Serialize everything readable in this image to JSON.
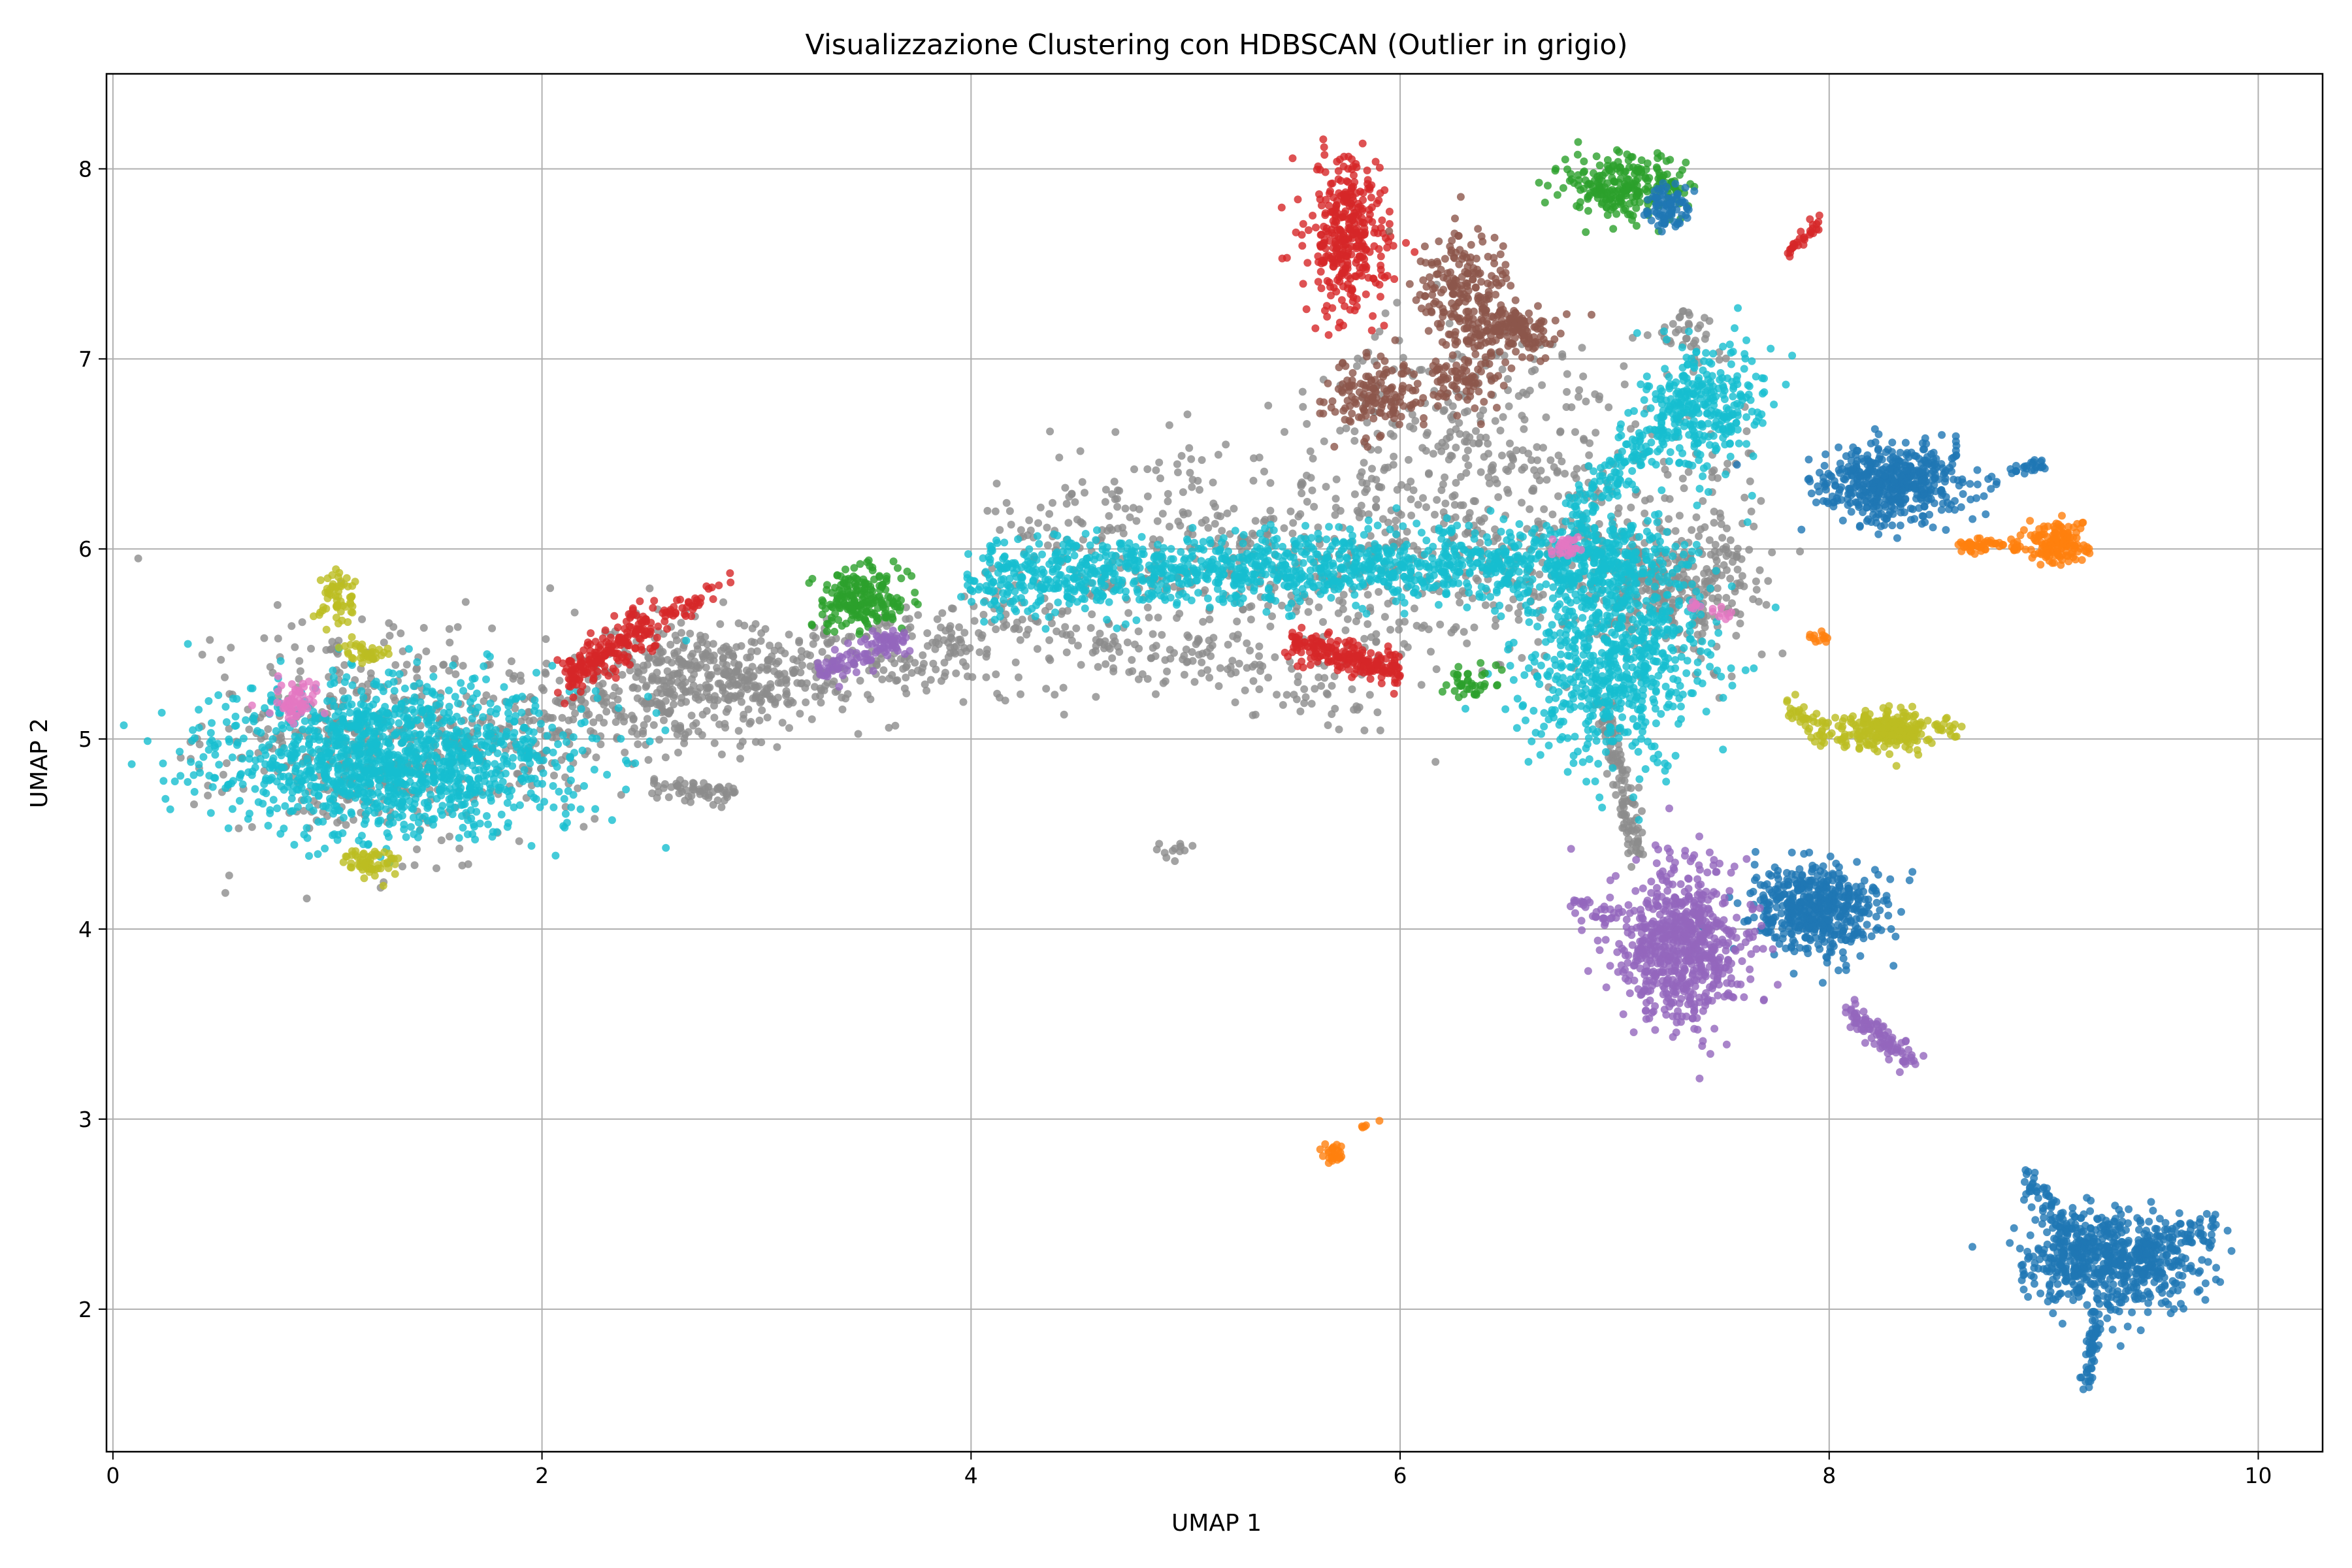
{
  "chart_data": {
    "type": "scatter",
    "title": "Visualizzazione Clustering con HDBSCAN (Outlier in grigio)",
    "xlabel": "UMAP 1",
    "ylabel": "UMAP 2",
    "xlim": [
      -0.03,
      10.3
    ],
    "ylim": [
      1.25,
      8.5
    ],
    "xticks": [
      0,
      2,
      4,
      6,
      8,
      10
    ],
    "yticks": [
      2,
      3,
      4,
      5,
      6,
      7,
      8
    ],
    "grid": true,
    "legend": "none",
    "outlier_color": "#8c8c8c",
    "colors": {
      "blue": "#1f77b4",
      "orange": "#ff7f0e",
      "green": "#2ca02c",
      "red": "#d62728",
      "purple": "#9467bd",
      "brown": "#8c564b",
      "pink": "#e377c2",
      "gray": "#7f7f7f",
      "olive": "#bcbd22",
      "cyan": "#17becf"
    },
    "clusters": [
      {
        "color": "gray",
        "shape": "blob",
        "cx": 1.3,
        "cy": 5.0,
        "sx": 0.4,
        "sy": 0.3,
        "n": 500
      },
      {
        "color": "gray",
        "shape": "line",
        "x0": 1.9,
        "y0": 5.05,
        "x1": 4.2,
        "y1": 5.55,
        "spread": 0.13,
        "n": 500
      },
      {
        "color": "gray",
        "shape": "blob",
        "cx": 2.7,
        "cy": 5.35,
        "sx": 0.25,
        "sy": 0.15,
        "n": 250
      },
      {
        "color": "gray",
        "shape": "line",
        "x0": 2.5,
        "y0": 4.75,
        "x1": 2.9,
        "y1": 4.7,
        "spread": 0.03,
        "n": 60
      },
      {
        "color": "gray",
        "shape": "line",
        "x0": 4.2,
        "y0": 5.9,
        "x1": 7.6,
        "y1": 6.0,
        "spread": 0.3,
        "n": 900
      },
      {
        "color": "gray",
        "shape": "blob",
        "cx": 6.3,
        "cy": 6.6,
        "sx": 0.4,
        "sy": 0.3,
        "n": 250
      },
      {
        "color": "gray",
        "shape": "blob",
        "cx": 7.3,
        "cy": 5.8,
        "sx": 0.2,
        "sy": 0.15,
        "n": 200
      },
      {
        "color": "gray",
        "shape": "line",
        "x0": 6.95,
        "y0": 5.2,
        "x1": 7.1,
        "y1": 4.4,
        "spread": 0.06,
        "n": 120
      },
      {
        "color": "gray",
        "shape": "line",
        "x0": 4.4,
        "y0": 5.55,
        "x1": 5.9,
        "y1": 5.2,
        "spread": 0.08,
        "n": 120
      },
      {
        "color": "gray",
        "shape": "blob",
        "cx": 7.3,
        "cy": 7.1,
        "sx": 0.1,
        "sy": 0.08,
        "n": 40
      },
      {
        "color": "gray",
        "shape": "blob",
        "cx": 4.95,
        "cy": 4.42,
        "sx": 0.05,
        "sy": 0.03,
        "n": 12
      },
      {
        "color": "cyan",
        "shape": "blob",
        "cx": 1.3,
        "cy": 4.9,
        "sx": 0.42,
        "sy": 0.2,
        "n": 1300
      },
      {
        "color": "cyan",
        "shape": "line",
        "x0": 4.0,
        "y0": 5.85,
        "x1": 7.2,
        "y1": 5.95,
        "spread": 0.1,
        "n": 1300
      },
      {
        "color": "cyan",
        "shape": "blob",
        "cx": 7.0,
        "cy": 5.5,
        "sx": 0.22,
        "sy": 0.3,
        "n": 800
      },
      {
        "color": "cyan",
        "shape": "blob",
        "cx": 7.4,
        "cy": 6.75,
        "sx": 0.14,
        "sy": 0.16,
        "n": 300
      },
      {
        "color": "cyan",
        "shape": "line",
        "x0": 6.8,
        "y0": 6.2,
        "x1": 7.3,
        "y1": 6.7,
        "spread": 0.08,
        "n": 150
      },
      {
        "color": "red",
        "shape": "blob",
        "cx": 5.75,
        "cy": 7.65,
        "sx": 0.1,
        "sy": 0.2,
        "n": 350
      },
      {
        "color": "red",
        "shape": "line",
        "x0": 2.1,
        "y0": 5.3,
        "x1": 2.5,
        "y1": 5.6,
        "spread": 0.06,
        "n": 200
      },
      {
        "color": "red",
        "shape": "line",
        "x0": 2.5,
        "y0": 5.6,
        "x1": 2.9,
        "y1": 5.85,
        "spread": 0.03,
        "n": 40
      },
      {
        "color": "red",
        "shape": "line",
        "x0": 5.5,
        "y0": 5.5,
        "x1": 6.0,
        "y1": 5.35,
        "spread": 0.05,
        "n": 200
      },
      {
        "color": "red",
        "shape": "line",
        "x0": 7.8,
        "y0": 7.55,
        "x1": 7.95,
        "y1": 7.72,
        "spread": 0.02,
        "n": 30
      },
      {
        "color": "green",
        "shape": "blob",
        "cx": 7.05,
        "cy": 7.9,
        "sx": 0.15,
        "sy": 0.08,
        "n": 250
      },
      {
        "color": "green",
        "shape": "blob",
        "cx": 3.5,
        "cy": 5.75,
        "sx": 0.1,
        "sy": 0.08,
        "n": 200
      },
      {
        "color": "green",
        "shape": "blob",
        "cx": 6.3,
        "cy": 5.3,
        "sx": 0.08,
        "sy": 0.05,
        "n": 40
      },
      {
        "color": "blue",
        "shape": "blob",
        "cx": 8.3,
        "cy": 6.35,
        "sx": 0.18,
        "sy": 0.1,
        "n": 500
      },
      {
        "color": "blue",
        "shape": "blob",
        "cx": 7.95,
        "cy": 4.1,
        "sx": 0.15,
        "sy": 0.12,
        "n": 500
      },
      {
        "color": "blue",
        "shape": "blob",
        "cx": 9.3,
        "cy": 2.25,
        "sx": 0.2,
        "sy": 0.13,
        "n": 600
      },
      {
        "color": "blue",
        "shape": "line",
        "x0": 9.25,
        "y0": 2.0,
        "x1": 9.2,
        "y1": 1.6,
        "spread": 0.03,
        "n": 60
      },
      {
        "color": "blue",
        "shape": "line",
        "x0": 8.9,
        "y0": 2.7,
        "x1": 9.2,
        "y1": 2.3,
        "spread": 0.05,
        "n": 80
      },
      {
        "color": "blue",
        "shape": "line",
        "x0": 9.5,
        "y0": 2.3,
        "x1": 9.8,
        "y1": 2.45,
        "spread": 0.04,
        "n": 50
      },
      {
        "color": "blue",
        "shape": "blob",
        "cx": 7.25,
        "cy": 7.8,
        "sx": 0.05,
        "sy": 0.06,
        "n": 80
      },
      {
        "color": "blue",
        "shape": "line",
        "x0": 8.85,
        "y0": 6.4,
        "x1": 9.0,
        "y1": 6.45,
        "spread": 0.02,
        "n": 25
      },
      {
        "color": "orange",
        "shape": "blob",
        "cx": 9.05,
        "cy": 6.03,
        "sx": 0.07,
        "sy": 0.05,
        "n": 150
      },
      {
        "color": "orange",
        "shape": "line",
        "x0": 8.6,
        "y0": 6.02,
        "x1": 8.9,
        "y1": 6.02,
        "spread": 0.02,
        "n": 50
      },
      {
        "color": "orange",
        "shape": "blob",
        "cx": 5.7,
        "cy": 2.82,
        "sx": 0.03,
        "sy": 0.03,
        "n": 25
      },
      {
        "color": "orange",
        "shape": "line",
        "x0": 5.8,
        "y0": 2.95,
        "x1": 5.95,
        "y1": 3.0,
        "spread": 0.01,
        "n": 5
      },
      {
        "color": "orange",
        "shape": "blob",
        "cx": 7.95,
        "cy": 5.53,
        "sx": 0.03,
        "sy": 0.02,
        "n": 12
      },
      {
        "color": "purple",
        "shape": "blob",
        "cx": 7.3,
        "cy": 3.9,
        "sx": 0.15,
        "sy": 0.2,
        "n": 700
      },
      {
        "color": "purple",
        "shape": "line",
        "x0": 8.1,
        "y0": 3.55,
        "x1": 8.4,
        "y1": 3.3,
        "spread": 0.04,
        "n": 100
      },
      {
        "color": "purple",
        "shape": "line",
        "x0": 3.3,
        "y0": 5.35,
        "x1": 3.7,
        "y1": 5.55,
        "spread": 0.04,
        "n": 100
      },
      {
        "color": "purple",
        "shape": "line",
        "x0": 6.8,
        "y0": 4.15,
        "x1": 7.0,
        "y1": 4.05,
        "spread": 0.03,
        "n": 30
      },
      {
        "color": "brown",
        "shape": "blob",
        "cx": 6.3,
        "cy": 7.35,
        "sx": 0.1,
        "sy": 0.15,
        "n": 200
      },
      {
        "color": "brown",
        "shape": "blob",
        "cx": 6.5,
        "cy": 7.15,
        "sx": 0.12,
        "sy": 0.07,
        "n": 150
      },
      {
        "color": "brown",
        "shape": "blob",
        "cx": 5.9,
        "cy": 6.8,
        "sx": 0.12,
        "sy": 0.1,
        "n": 150
      },
      {
        "color": "brown",
        "shape": "blob",
        "cx": 6.3,
        "cy": 6.9,
        "sx": 0.1,
        "sy": 0.08,
        "n": 80
      },
      {
        "color": "pink",
        "shape": "blob",
        "cx": 0.83,
        "cy": 5.2,
        "sx": 0.05,
        "sy": 0.05,
        "n": 60
      },
      {
        "color": "pink",
        "shape": "blob",
        "cx": 6.78,
        "cy": 6.02,
        "sx": 0.04,
        "sy": 0.03,
        "n": 30
      },
      {
        "color": "pink",
        "shape": "line",
        "x0": 7.35,
        "y0": 5.7,
        "x1": 7.55,
        "y1": 5.65,
        "spread": 0.02,
        "n": 15
      },
      {
        "color": "olive",
        "shape": "blob",
        "cx": 1.05,
        "cy": 5.75,
        "sx": 0.05,
        "sy": 0.08,
        "n": 60
      },
      {
        "color": "olive",
        "shape": "blob",
        "cx": 1.18,
        "cy": 5.45,
        "sx": 0.05,
        "sy": 0.04,
        "n": 35
      },
      {
        "color": "olive",
        "shape": "blob",
        "cx": 1.2,
        "cy": 4.35,
        "sx": 0.06,
        "sy": 0.04,
        "n": 60
      },
      {
        "color": "olive",
        "shape": "blob",
        "cx": 8.25,
        "cy": 5.05,
        "sx": 0.12,
        "sy": 0.05,
        "n": 250
      },
      {
        "color": "olive",
        "shape": "line",
        "x0": 7.8,
        "y0": 5.2,
        "x1": 8.0,
        "y1": 5.0,
        "spread": 0.04,
        "n": 40
      },
      {
        "color": "olive",
        "shape": "line",
        "x0": 8.5,
        "y0": 5.07,
        "x1": 8.6,
        "y1": 5.08,
        "spread": 0.02,
        "n": 12
      }
    ]
  }
}
